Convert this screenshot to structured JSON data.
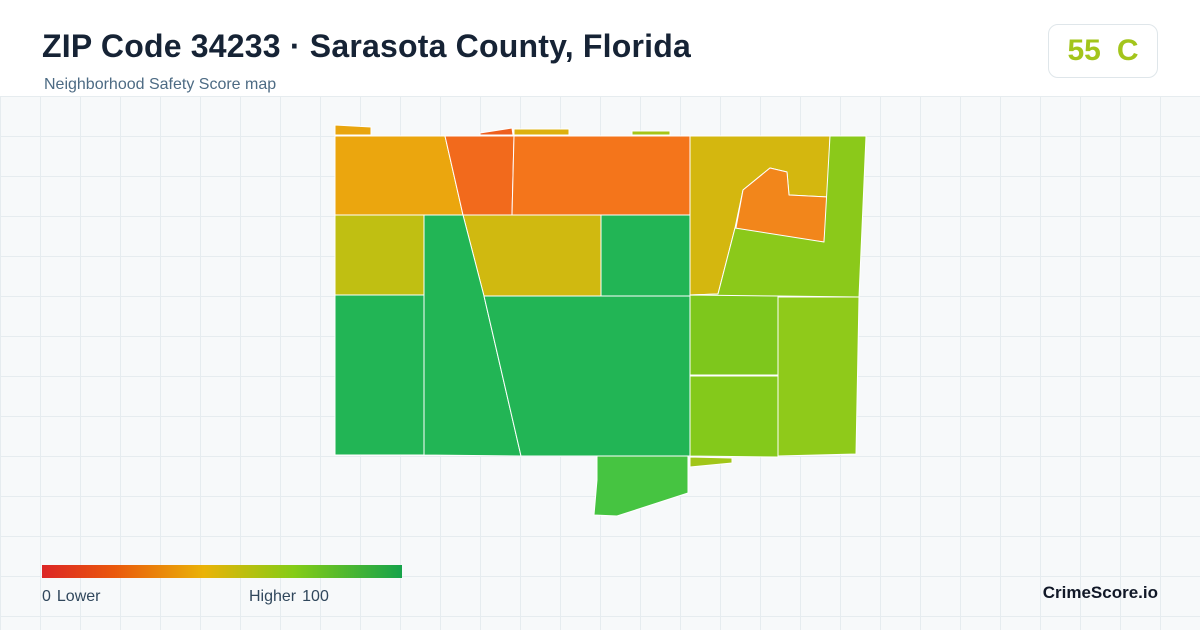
{
  "header": {
    "title": "ZIP Code 34233 · Sarasota County, Florida",
    "subtitle": "Neighborhood Safety Score map"
  },
  "score": {
    "value": "55",
    "grade": "C",
    "color": "#a3c51c"
  },
  "legend": {
    "low_value": "0",
    "low_label": "Lower",
    "high_label": "Higher",
    "high_value": "100",
    "color_low": "#dc2626",
    "color_high": "#16a34a"
  },
  "brand": "CrimeScore.io",
  "map": {
    "regions": [
      {
        "name": "nw-sliver",
        "color": "#e9a50e"
      },
      {
        "name": "nw-block",
        "color": "#eba60e"
      },
      {
        "name": "north-sliver-a",
        "color": "#ee5f1e"
      },
      {
        "name": "north-center-west",
        "color": "#f26a1c"
      },
      {
        "name": "north-sliver-b",
        "color": "#ddb10e"
      },
      {
        "name": "north-center-east",
        "color": "#f4751b"
      },
      {
        "name": "north-sliver-c",
        "color": "#a6c518"
      },
      {
        "name": "northeast-block",
        "color": "#d4b70f"
      },
      {
        "name": "northeast-pocket",
        "color": "#f2861b"
      },
      {
        "name": "east-strip",
        "color": "#8bc91a"
      },
      {
        "name": "west-middle",
        "color": "#c0bf12"
      },
      {
        "name": "center-middle",
        "color": "#d0b910"
      },
      {
        "name": "center-east-middle",
        "color": "#22b555"
      },
      {
        "name": "southwest",
        "color": "#22b555"
      },
      {
        "name": "south-diagonal",
        "color": "#22b555"
      },
      {
        "name": "south-center",
        "color": "#22b555"
      },
      {
        "name": "east-middle",
        "color": "#8fca1a"
      },
      {
        "name": "southeast-lower",
        "color": "#84c91b"
      },
      {
        "name": "southeast-inner",
        "color": "#7ec71c"
      },
      {
        "name": "south-tab",
        "color": "#46c441"
      },
      {
        "name": "south-sliver",
        "color": "#a1c619"
      }
    ]
  }
}
